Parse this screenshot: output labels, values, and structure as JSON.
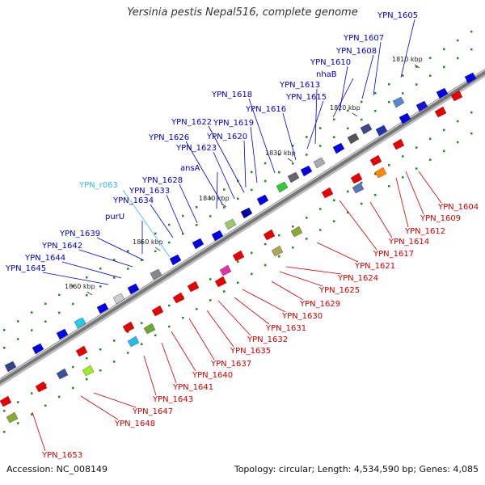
{
  "title": "Yersinia pestis Nepal516, complete genome",
  "accession_text": "Accession: NC_008149",
  "summary_text": "Topology: circular; Length: 4,534,590 bp; Genes: 4,085",
  "colors": {
    "forward_label": "#0000cc",
    "reverse_label": "#cc0000",
    "rna_label": "#33bbdd",
    "forward_gene": "#0000ee",
    "reverse_gene": "#ee1111",
    "backbone": "#777777",
    "tick": "#228822"
  },
  "ticks": [
    "1810 kbp",
    "1820 kbp",
    "1830 kbp",
    "1840 kbp",
    "1850 kbp",
    "1860 kbp"
  ],
  "forward_labels": [
    "YPN_1605",
    "YPN_1607",
    "YPN_1608",
    "YPN_1610",
    "nhaB",
    "YPN_1613",
    "YPN_1615",
    "YPN_1616",
    "YPN_1618",
    "YPN_1619",
    "YPN_1620",
    "YPN_1622",
    "YPN_1623",
    "YPN_1626",
    "ansA",
    "YPN_1628",
    "YPN_1633",
    "YPN_1634",
    "purU",
    "YPN_1639",
    "YPN_1642",
    "YPN_1644",
    "YPN_1645"
  ],
  "rna_labels": [
    "YPN_r063"
  ],
  "reverse_labels": [
    "YPN_1604",
    "YPN_1609",
    "YPN_1612",
    "YPN_1614",
    "YPN_1617",
    "YPN_1621",
    "YPN_1624",
    "YPN_1625",
    "YPN_1629",
    "YPN_1630",
    "YPN_1631",
    "YPN_1632",
    "YPN_1635",
    "YPN_1637",
    "YPN_1640",
    "YPN_1641",
    "YPN_1643",
    "YPN_1647",
    "YPN_1648",
    "YPN_1653"
  ]
}
